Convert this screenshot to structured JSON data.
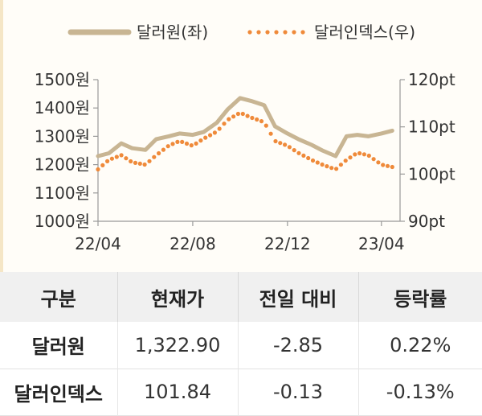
{
  "colors": {
    "krw_line": "#c8b593",
    "dxy_dots": "#ef8a3a",
    "axis": "#999999",
    "header_bg": "#f0f0f0"
  },
  "chart_data": {
    "type": "line",
    "title": "",
    "legend": {
      "position": "top"
    },
    "x_ticks": [
      "22/04",
      "22/08",
      "22/12",
      "23/04"
    ],
    "y_left": {
      "ticks": [
        "1000원",
        "1100원",
        "1200원",
        "1300원",
        "1400원",
        "1500원"
      ],
      "range": [
        1000,
        1500
      ]
    },
    "y_right": {
      "ticks": [
        "90pt",
        "100pt",
        "110pt",
        "120pt"
      ],
      "range": [
        90,
        120
      ]
    },
    "series": [
      {
        "name": "달러원(좌)",
        "axis": "left",
        "style": "solid",
        "x": [
          "2022-04-01",
          "2022-04-15",
          "2022-05-01",
          "2022-05-15",
          "2022-06-01",
          "2022-06-15",
          "2022-07-01",
          "2022-07-15",
          "2022-08-01",
          "2022-08-15",
          "2022-09-01",
          "2022-09-15",
          "2022-10-01",
          "2022-10-15",
          "2022-11-01",
          "2022-11-15",
          "2022-12-01",
          "2022-12-15",
          "2023-01-01",
          "2023-01-15",
          "2023-02-01",
          "2023-02-15",
          "2023-03-01",
          "2023-03-15",
          "2023-04-01",
          "2023-04-15"
        ],
        "values": [
          1230,
          1240,
          1275,
          1258,
          1252,
          1290,
          1300,
          1310,
          1305,
          1315,
          1348,
          1395,
          1435,
          1425,
          1410,
          1335,
          1310,
          1290,
          1270,
          1250,
          1230,
          1300,
          1305,
          1300,
          1310,
          1320
        ]
      },
      {
        "name": "달러인덱스(우)",
        "axis": "right",
        "style": "dotted",
        "x": [
          "2022-04-01",
          "2022-04-15",
          "2022-05-01",
          "2022-05-15",
          "2022-06-01",
          "2022-06-15",
          "2022-07-01",
          "2022-07-15",
          "2022-08-01",
          "2022-08-15",
          "2022-09-01",
          "2022-09-15",
          "2022-10-01",
          "2022-10-15",
          "2022-11-01",
          "2022-11-15",
          "2022-12-01",
          "2022-12-15",
          "2023-01-01",
          "2023-01-15",
          "2023-02-01",
          "2023-02-15",
          "2023-03-01",
          "2023-03-15",
          "2023-04-01",
          "2023-04-15"
        ],
        "values": [
          101,
          103,
          104,
          102.5,
          102,
          104,
          106,
          107,
          106,
          107.5,
          109,
          111.5,
          113,
          112,
          111,
          107,
          106,
          104.5,
          103,
          102,
          101,
          103,
          104.5,
          104,
          102,
          101.5
        ]
      }
    ]
  },
  "table": {
    "headers": [
      "구분",
      "현재가",
      "전일 대비",
      "등락률"
    ],
    "rows": [
      [
        "달러원",
        "1,322.90",
        "-2.85",
        "0.22%"
      ],
      [
        "달러인덱스",
        "101.84",
        "-0.13",
        "-0.13%"
      ]
    ]
  }
}
